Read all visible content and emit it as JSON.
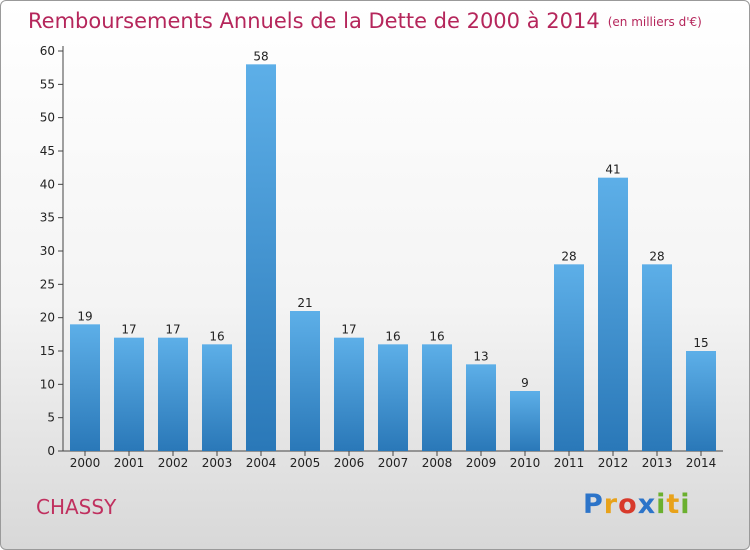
{
  "title": {
    "main": "Remboursements Annuels de la Dette de 2000 à 2014",
    "unit": "(en milliers d'€)"
  },
  "commune": "CHASSY",
  "brand": {
    "name": "Proxiti",
    "letters": [
      {
        "char": "P",
        "color": "#2c74c9"
      },
      {
        "char": "r",
        "color": "#e8a21a"
      },
      {
        "char": "o",
        "color": "#d83a2b"
      },
      {
        "char": "x",
        "color": "#2c74c9"
      },
      {
        "char": "i",
        "color": "#6bb02f"
      },
      {
        "char": "t",
        "color": "#e8a21a"
      },
      {
        "char": "i",
        "color": "#6bb02f"
      }
    ]
  },
  "colors": {
    "bar_top": "#5dafe8",
    "bar_bottom": "#2a78b8",
    "title": "#b5265b"
  },
  "chart_data": {
    "type": "bar",
    "categories": [
      "2000",
      "2001",
      "2002",
      "2003",
      "2004",
      "2005",
      "2006",
      "2007",
      "2008",
      "2009",
      "2010",
      "2011",
      "2012",
      "2013",
      "2014"
    ],
    "values": [
      19,
      17,
      17,
      16,
      58,
      21,
      17,
      16,
      16,
      13,
      9,
      28,
      41,
      28,
      15
    ],
    "ylim": [
      0,
      60
    ],
    "yticks": [
      0,
      5,
      10,
      15,
      20,
      25,
      30,
      35,
      40,
      45,
      50,
      55,
      60
    ],
    "data_labels": true,
    "grid": false,
    "legend": "none"
  }
}
